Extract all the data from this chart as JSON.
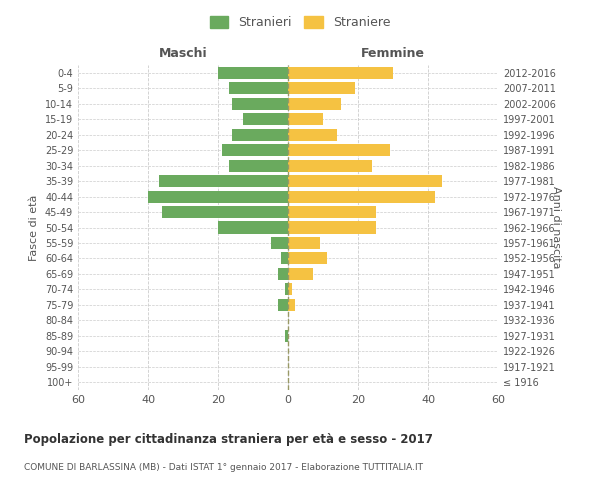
{
  "age_groups": [
    "100+",
    "95-99",
    "90-94",
    "85-89",
    "80-84",
    "75-79",
    "70-74",
    "65-69",
    "60-64",
    "55-59",
    "50-54",
    "45-49",
    "40-44",
    "35-39",
    "30-34",
    "25-29",
    "20-24",
    "15-19",
    "10-14",
    "5-9",
    "0-4"
  ],
  "birth_years": [
    "≤ 1916",
    "1917-1921",
    "1922-1926",
    "1927-1931",
    "1932-1936",
    "1937-1941",
    "1942-1946",
    "1947-1951",
    "1952-1956",
    "1957-1961",
    "1962-1966",
    "1967-1971",
    "1972-1976",
    "1977-1981",
    "1982-1986",
    "1987-1991",
    "1992-1996",
    "1997-2001",
    "2002-2006",
    "2007-2011",
    "2012-2016"
  ],
  "maschi": [
    0,
    0,
    0,
    1,
    0,
    3,
    1,
    3,
    2,
    5,
    20,
    36,
    40,
    37,
    17,
    19,
    16,
    13,
    16,
    17,
    20
  ],
  "femmine": [
    0,
    0,
    0,
    0,
    0,
    2,
    1,
    7,
    11,
    9,
    25,
    25,
    42,
    44,
    24,
    29,
    14,
    10,
    15,
    19,
    30
  ],
  "male_color": "#6aaa5e",
  "female_color": "#f5c242",
  "xlim": 60,
  "title": "Popolazione per cittadinanza straniera per età e sesso - 2017",
  "subtitle": "COMUNE DI BARLASSINA (MB) - Dati ISTAT 1° gennaio 2017 - Elaborazione TUTTITALIA.IT",
  "ylabel_left": "Fasce di età",
  "ylabel_right": "Anni di nascita",
  "header_left": "Maschi",
  "header_right": "Femmine",
  "legend_male": "Stranieri",
  "legend_female": "Straniere",
  "background_color": "#ffffff",
  "grid_color": "#cccccc",
  "tick_color": "#888888",
  "label_color": "#555555"
}
